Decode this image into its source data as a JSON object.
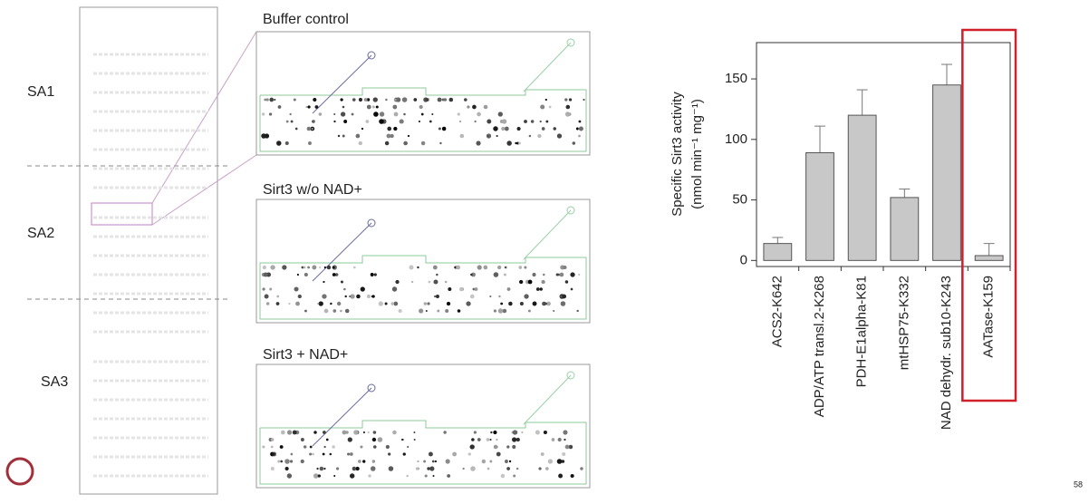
{
  "panels": {
    "groups": [
      "SA1",
      "SA2",
      "SA3"
    ],
    "arrays": [
      "Buffer control",
      "Sirt3 w/o NAD+",
      "Sirt3 + NAD+"
    ],
    "page_number": "58"
  },
  "chart_data": {
    "type": "bar",
    "y_label": [
      "Specific Sirt3 activity",
      "(nmol min⁻¹ mg⁻¹)"
    ],
    "categories": [
      "ACS2-K642",
      "ADP/ATP transl.2-K268",
      "PDH-E1alpha-K81",
      "mtHSP75-K332",
      "NAD dehydr. sub10-K243",
      "AATase-K159"
    ],
    "values": [
      14,
      89,
      120,
      52,
      145,
      4
    ],
    "errors": [
      5,
      22,
      21,
      7,
      17,
      10
    ],
    "color": "#c8c8c8",
    "ylim": [
      -5,
      180
    ],
    "yticks": [
      0,
      50,
      100,
      150
    ],
    "highlight": [
      5
    ],
    "highlight_color": "#d0202a"
  }
}
